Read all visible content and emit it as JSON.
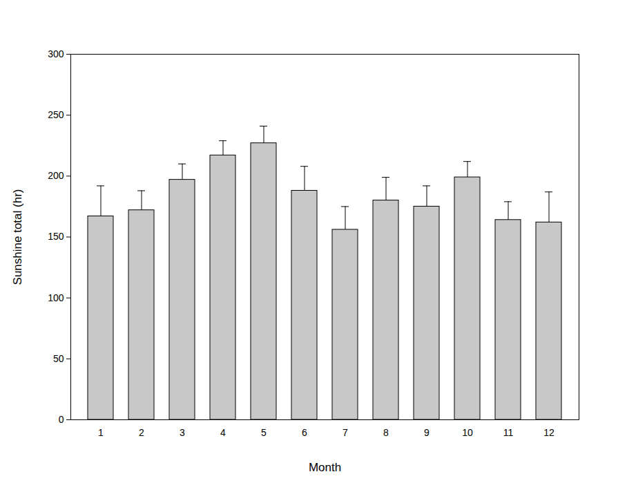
{
  "chart_data": {
    "type": "bar",
    "x_label": "Month",
    "y_label": "Sunshine total (hr)",
    "categories": [
      "1",
      "2",
      "3",
      "4",
      "5",
      "6",
      "7",
      "8",
      "9",
      "10",
      "11",
      "12"
    ],
    "values": [
      167,
      172,
      197,
      217,
      227,
      188,
      156,
      180,
      175,
      199,
      164,
      162
    ],
    "errors": [
      25,
      16,
      13,
      12,
      14,
      20,
      19,
      19,
      17,
      13,
      15,
      25
    ],
    "color": "#c8c8c8",
    "ylim": [
      0,
      300
    ],
    "yticks": [
      0,
      50,
      100,
      150,
      200,
      250,
      300
    ],
    "grid": false
  }
}
